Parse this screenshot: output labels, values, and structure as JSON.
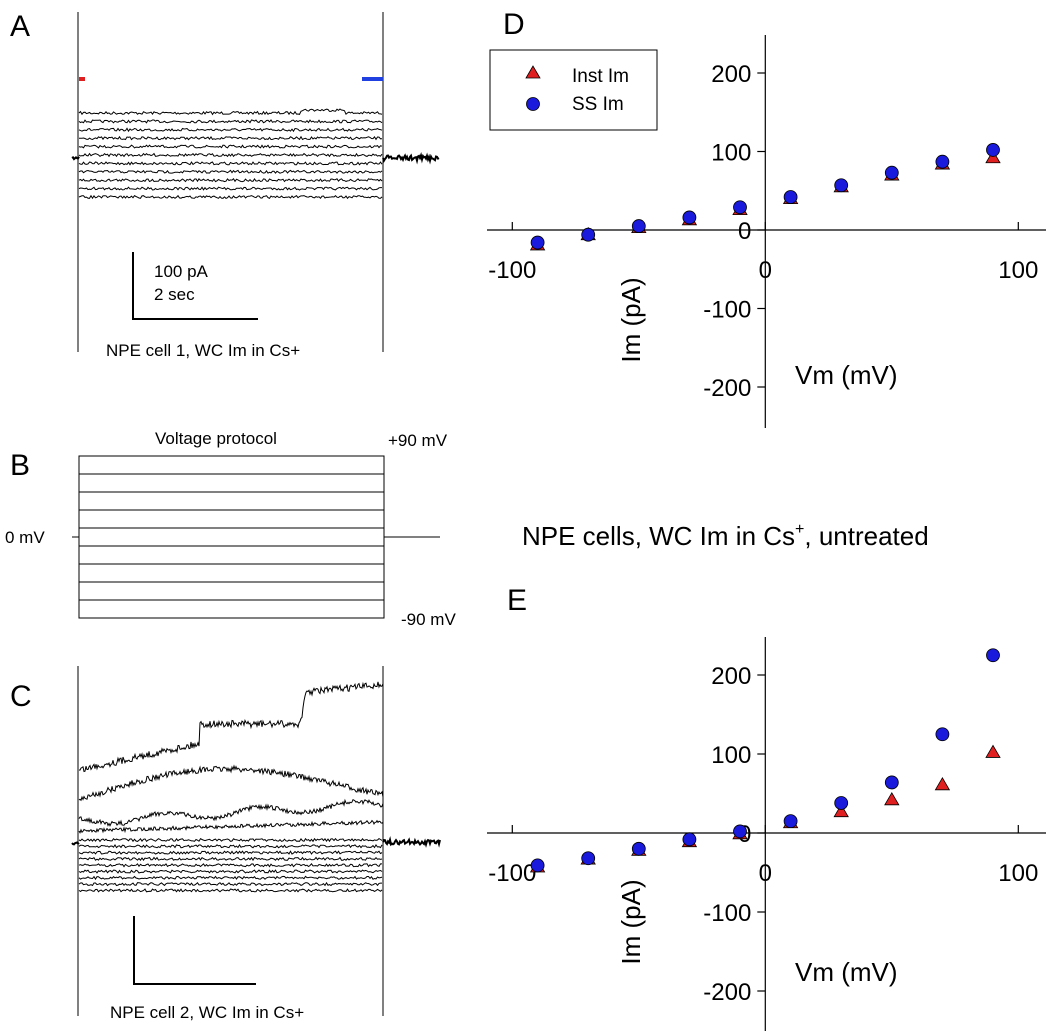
{
  "panels": {
    "A": {
      "letter": "A",
      "scale_top": "100 pA",
      "scale_bottom": "2 sec",
      "caption": "NPE cell 1, WC Im in Cs+"
    },
    "B": {
      "letter": "B",
      "title": "Voltage protocol",
      "top_label": "+90 mV",
      "bottom_label": "-90 mV",
      "zero_label": "0 mV"
    },
    "C": {
      "letter": "C",
      "caption": "NPE cell 2, WC Im in Cs+"
    },
    "D": {
      "letter": "D"
    },
    "E": {
      "letter": "E"
    }
  },
  "center_title": {
    "main": "NPE cells, WC Im in Cs",
    "sup": "+",
    "tail": ", untreated"
  },
  "legend": {
    "inst": "Inst Im",
    "ss": "SS Im"
  },
  "colors": {
    "inst": "#e02020",
    "ss": "#1a1adc",
    "trace": "#000000",
    "red_marker": "#e02020",
    "blue_marker": "#2040e0"
  },
  "chart_data": [
    {
      "id": "D",
      "type": "scatter",
      "xlabel": "Vm (mV)",
      "ylabel": "Im (pA)",
      "xlim": [
        -110,
        110
      ],
      "ylim": [
        -250,
        250
      ],
      "xticks": [
        -100,
        0,
        100
      ],
      "xtick_labels": [
        "-100",
        "0",
        "100"
      ],
      "yticks": [
        -200,
        -100,
        0,
        100,
        200
      ],
      "ytick_labels": [
        "-200",
        "-100",
        "0",
        "100",
        "200"
      ],
      "series": [
        {
          "name": "Inst Im",
          "marker": "triangle",
          "x": [
            -90,
            -70,
            -50,
            -30,
            -10,
            10,
            30,
            50,
            70,
            90
          ],
          "y": [
            -19,
            -6,
            3,
            13,
            26,
            40,
            55,
            70,
            84,
            92
          ]
        },
        {
          "name": "SS Im",
          "marker": "circle",
          "x": [
            -90,
            -70,
            -50,
            -30,
            -10,
            10,
            30,
            50,
            70,
            90
          ],
          "y": [
            -16,
            -6,
            5,
            16,
            29,
            42,
            57,
            73,
            87,
            102
          ]
        }
      ]
    },
    {
      "id": "E",
      "type": "scatter",
      "xlabel": "Vm (mV)",
      "ylabel": "Im (pA)",
      "xlim": [
        -110,
        110
      ],
      "ylim": [
        -250,
        250
      ],
      "xticks": [
        -100,
        0,
        100
      ],
      "xtick_labels": [
        "-100",
        "0",
        "100"
      ],
      "yticks": [
        -200,
        -100,
        0,
        100,
        200
      ],
      "ytick_labels": [
        "-200",
        "-100",
        "0",
        "100",
        "200"
      ],
      "series": [
        {
          "name": "Inst Im",
          "marker": "triangle",
          "x": [
            -90,
            -70,
            -50,
            -30,
            -10,
            10,
            30,
            50,
            70,
            90
          ],
          "y": [
            -43,
            -33,
            -22,
            -11,
            -1,
            13,
            27,
            42,
            61,
            102
          ]
        },
        {
          "name": "SS Im",
          "marker": "circle",
          "x": [
            -90,
            -70,
            -50,
            -30,
            -10,
            10,
            30,
            50,
            70,
            90
          ],
          "y": [
            -41,
            -32,
            -20,
            -8,
            2,
            15,
            38,
            64,
            125,
            225
          ]
        }
      ]
    }
  ]
}
